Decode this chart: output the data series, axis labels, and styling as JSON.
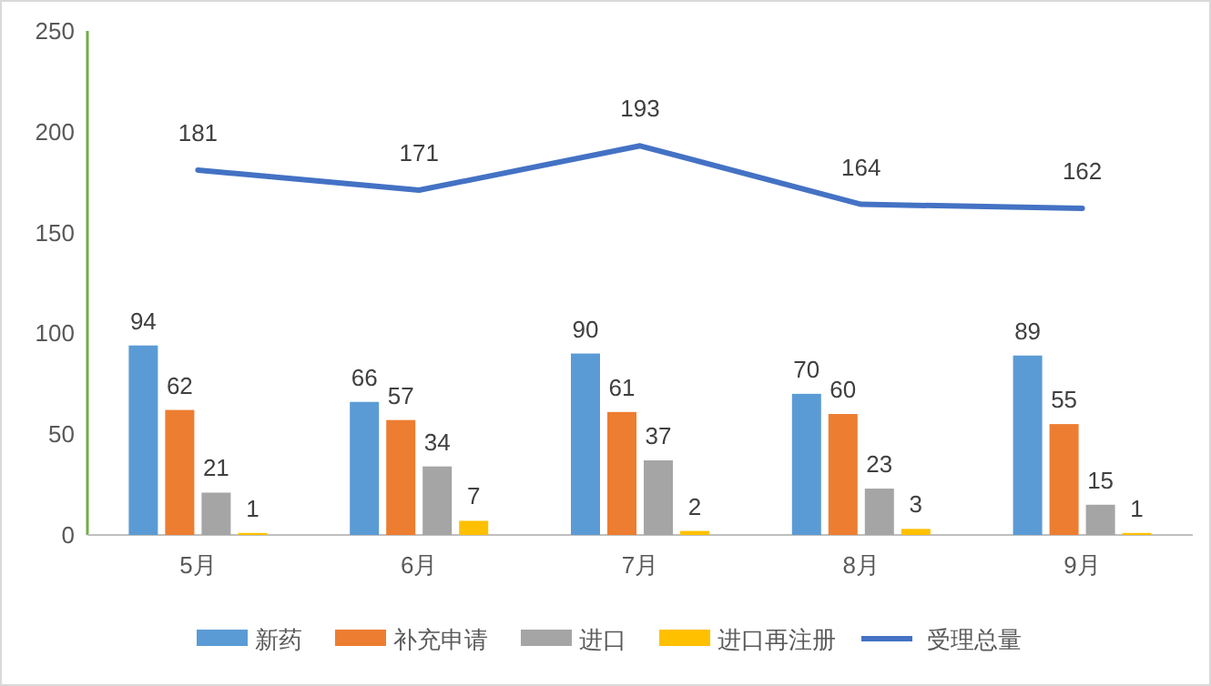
{
  "chart_data": {
    "type": "bar",
    "categories": [
      "5月",
      "6月",
      "7月",
      "8月",
      "9月"
    ],
    "series": [
      {
        "name": "新药",
        "color": "#5b9bd5",
        "values": [
          94,
          66,
          90,
          70,
          89
        ]
      },
      {
        "name": "补充申请",
        "color": "#ed7d31",
        "values": [
          62,
          57,
          61,
          60,
          55
        ]
      },
      {
        "name": "进口",
        "color": "#a5a5a5",
        "values": [
          21,
          34,
          37,
          23,
          15
        ]
      },
      {
        "name": "进口再注册",
        "color": "#ffc000",
        "values": [
          1,
          7,
          2,
          3,
          1
        ]
      },
      {
        "name": "受理总量",
        "color": "#4472c4",
        "type": "line",
        "values": [
          181,
          171,
          193,
          164,
          162
        ]
      }
    ],
    "ylim": [
      0,
      250
    ],
    "yticks": [
      0,
      50,
      100,
      150,
      200,
      250
    ],
    "data_labels": true,
    "legend": "bottom",
    "grid": false,
    "marker": "none"
  }
}
